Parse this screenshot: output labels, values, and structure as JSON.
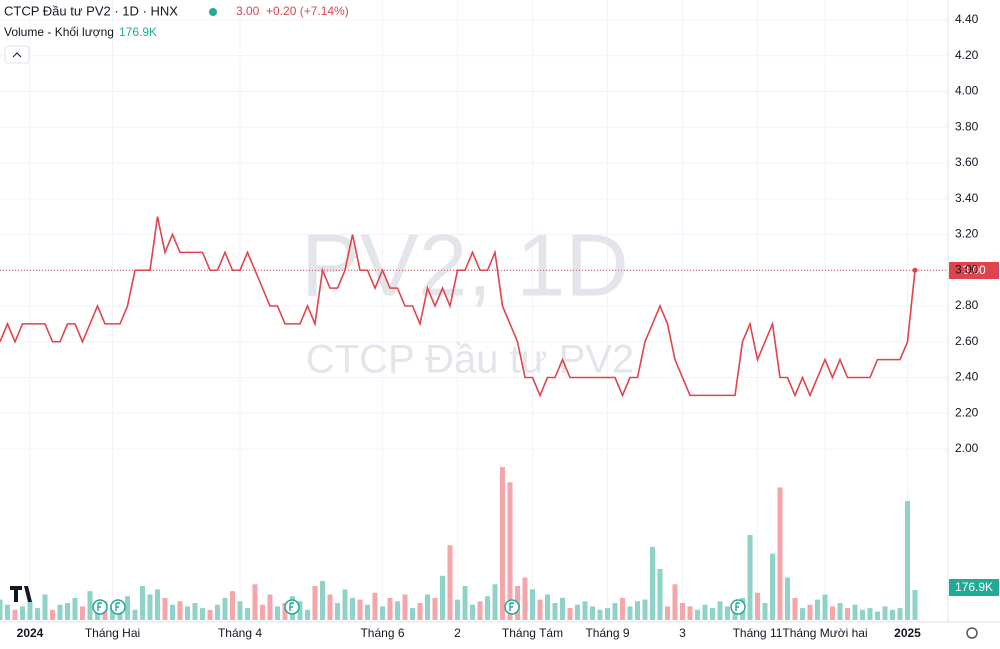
{
  "chart_data": {
    "type": "line",
    "title": "CTCP Đầu tư PV2 · 1D · HNX",
    "price_label": "3.00",
    "change_label": "+0.20 (+7.14%)",
    "watermark": "PV2, 1D",
    "watermark_subtitle": "CTCP Đầu tư PV2",
    "series": [
      {
        "name": "PV2",
        "color": "#e0434c",
        "values": [
          2.6,
          2.7,
          2.6,
          2.7,
          2.7,
          2.7,
          2.7,
          2.6,
          2.6,
          2.7,
          2.7,
          2.6,
          2.7,
          2.8,
          2.7,
          2.7,
          2.7,
          2.8,
          3.0,
          3.0,
          3.0,
          3.3,
          3.1,
          3.2,
          3.1,
          3.1,
          3.1,
          3.1,
          3.0,
          3.0,
          3.1,
          3.0,
          3.0,
          3.1,
          3.0,
          2.9,
          2.8,
          2.8,
          2.7,
          2.7,
          2.7,
          2.8,
          2.7,
          3.0,
          2.9,
          2.9,
          3.0,
          3.2,
          3.0,
          3.0,
          2.9,
          3.0,
          2.9,
          2.9,
          2.8,
          2.8,
          2.7,
          2.9,
          2.8,
          2.9,
          2.8,
          3.0,
          3.0,
          3.1,
          3.0,
          3.0,
          3.1,
          2.8,
          2.7,
          2.6,
          2.4,
          2.4,
          2.3,
          2.4,
          2.4,
          2.5,
          2.4,
          2.4,
          2.4,
          2.4,
          2.4,
          2.4,
          2.4,
          2.3,
          2.4,
          2.4,
          2.6,
          2.7,
          2.8,
          2.7,
          2.5,
          2.4,
          2.3,
          2.3,
          2.3,
          2.3,
          2.3,
          2.3,
          2.3,
          2.6,
          2.7,
          2.5,
          2.6,
          2.7,
          2.4,
          2.4,
          2.3,
          2.4,
          2.3,
          2.4,
          2.5,
          2.4,
          2.5,
          2.4,
          2.4,
          2.4,
          2.4,
          2.5,
          2.5,
          2.5,
          2.5,
          2.6,
          3.0
        ]
      }
    ],
    "volume": {
      "name": "Volume - Khối lượng",
      "up_color": "#8fd3c8",
      "down_color": "#f5a6ab",
      "ylim": [
        0,
        1000
      ],
      "values": [
        120,
        90,
        60,
        80,
        110,
        70,
        150,
        60,
        90,
        100,
        130,
        80,
        170,
        60,
        110,
        90,
        70,
        140,
        60,
        200,
        150,
        180,
        130,
        90,
        110,
        80,
        100,
        70,
        60,
        90,
        130,
        170,
        110,
        70,
        210,
        90,
        150,
        80,
        100,
        140,
        110,
        60,
        200,
        230,
        150,
        100,
        180,
        130,
        120,
        90,
        160,
        80,
        130,
        110,
        150,
        70,
        100,
        150,
        130,
        260,
        440,
        120,
        200,
        90,
        110,
        140,
        210,
        900,
        810,
        200,
        250,
        180,
        120,
        150,
        100,
        130,
        70,
        90,
        110,
        80,
        60,
        70,
        100,
        130,
        80,
        110,
        120,
        430,
        300,
        80,
        210,
        100,
        80,
        60,
        90,
        70,
        110,
        80,
        90,
        130,
        500,
        160,
        100,
        390,
        780,
        250,
        130,
        70,
        90,
        120,
        150,
        80,
        100,
        70,
        90,
        60,
        70,
        50,
        80,
        60,
        70,
        700,
        176.9
      ],
      "last_label": "176.9K"
    },
    "ylim": [
      2.0,
      4.4
    ],
    "yticks": [
      {
        "value": 2.0,
        "label": "2.00"
      },
      {
        "value": 2.2,
        "label": "2.20"
      },
      {
        "value": 2.4,
        "label": "2.40"
      },
      {
        "value": 2.6,
        "label": "2.60"
      },
      {
        "value": 2.8,
        "label": "2.80"
      },
      {
        "value": 3.0,
        "label": "3.00"
      },
      {
        "value": 3.2,
        "label": "3.20"
      },
      {
        "value": 3.4,
        "label": "3.40"
      },
      {
        "value": 3.6,
        "label": "3.60"
      },
      {
        "value": 3.8,
        "label": "3.80"
      },
      {
        "value": 4.0,
        "label": "4.00"
      },
      {
        "value": 4.2,
        "label": "4.20"
      },
      {
        "value": 4.4,
        "label": "4.40"
      }
    ],
    "xticks": [
      {
        "value": 4,
        "label": "2024"
      },
      {
        "value": 15,
        "label": "Tháng Hai"
      },
      {
        "value": 32,
        "label": "Tháng 4"
      },
      {
        "value": 51,
        "label": "Tháng 6"
      },
      {
        "value": 61,
        "label": "2"
      },
      {
        "value": 71,
        "label": "Tháng Tám"
      },
      {
        "value": 81,
        "label": "Tháng 9"
      },
      {
        "value": 91,
        "label": "3"
      },
      {
        "value": 101,
        "label": "Tháng 11"
      },
      {
        "value": 110,
        "label": "Tháng Mười hai"
      },
      {
        "value": 121,
        "label": "2025"
      }
    ],
    "grid": true
  }
}
